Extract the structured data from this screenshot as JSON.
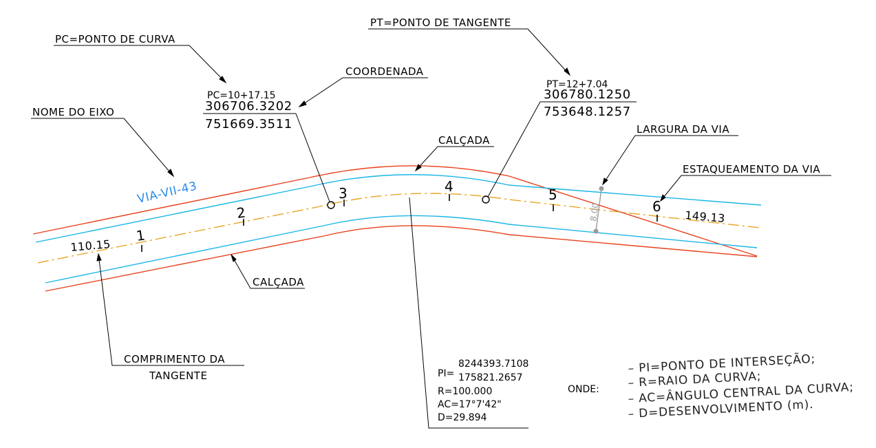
{
  "colors": {
    "sidewalk": "#e8401c",
    "lane_edge": "#1ab6e6",
    "centerline": "#e8a520",
    "axis_name": "#2a8be8",
    "width_dim": "#9a9a9a"
  },
  "labels": {
    "pc_def": "PC=PONTO DE CURVA",
    "pt_def": "PT=PONTO DE TANGENTE",
    "coord": "COORDENADA",
    "axis_name_label": "NOME DO EIXO",
    "calcada_top": "CALÇADA",
    "calcada_bottom": "CALÇADA",
    "road_width": "LARGURA DA VIA",
    "stationing": "ESTAQUEAMENTO DA VIA",
    "tangent_len_1": "COMPRIMENTO DA",
    "tangent_len_2": "TANGENTE"
  },
  "pc": {
    "station": "PC=10+17.15",
    "coord_a": "306706.3202",
    "coord_b": "751669.3511"
  },
  "pt": {
    "station": "PT=12+7.04",
    "coord_a": "306780.1250",
    "coord_b": "753648.1257"
  },
  "axis_name": "VIA-VII-43",
  "road_width_value": "8.00",
  "tangent_lengths": {
    "left": "110.15",
    "right": "149.13"
  },
  "stations": [
    "1",
    "2",
    "3",
    "4",
    "5",
    "6"
  ],
  "pi": {
    "prefix": "PI=",
    "coord_a": "8244393.7108",
    "coord_b": "175821.2657",
    "radius": "R=100.000",
    "ac": "AC=17°7'42\"",
    "d": "D=29.894"
  },
  "legend": {
    "title": "ONDE:",
    "items": [
      "– PI=PONTO DE INTERSEÇÃO;",
      "– R=RAIO DA CURVA;",
      "– AC=ÂNGULO CENTRAL DA CURVA;",
      "– D=DESENVOLVIMENTO (m)."
    ]
  }
}
